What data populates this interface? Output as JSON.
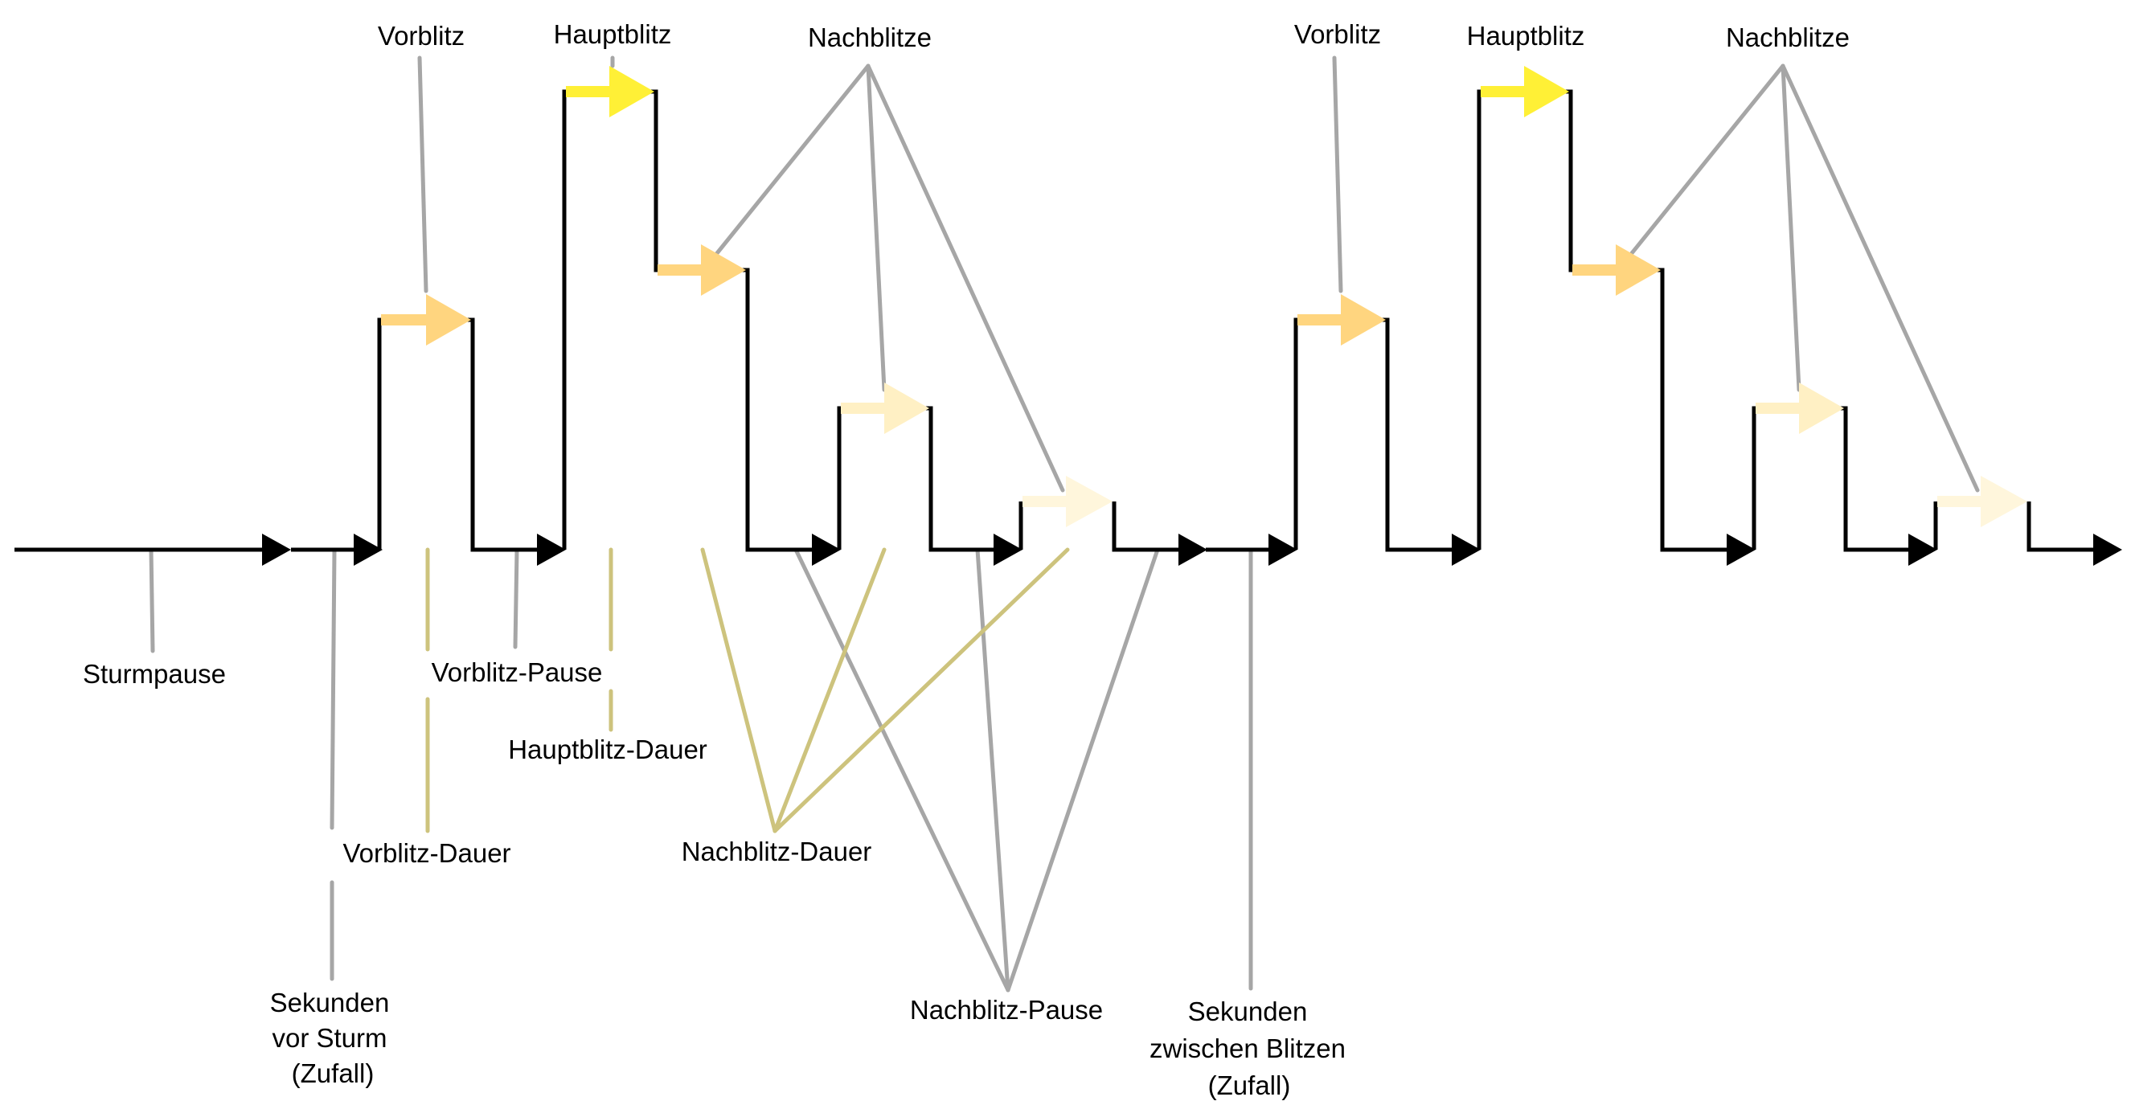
{
  "colors": {
    "signal": "#000000",
    "leader_gray": "#a6a6a6",
    "leader_olive": "#cdc37d",
    "main_flash": "#fff036",
    "pre_flash": "#ffd57f",
    "after_flash_1": "#ffd57f",
    "after_flash_2": "#fff0c4",
    "after_flash_3": "#fff6dc"
  },
  "labels": {
    "pre_flash_1": "Vorblitz",
    "main_flash_1": "Hauptblitz",
    "after_flashes_1": "Nachblitze",
    "pre_flash_2": "Vorblitz",
    "main_flash_2": "Hauptblitz",
    "after_flashes_2": "Nachblitze",
    "storm_pause": "Sturmpause",
    "pre_flash_pause": "Vorblitz-Pause",
    "main_flash_duration": "Hauptblitz-Dauer",
    "pre_flash_duration": "Vorblitz-Dauer",
    "after_flash_duration": "Nachblitz-Dauer",
    "seconds_before_storm": [
      "Sekunden",
      "vor Sturm",
      "(Zufall)"
    ],
    "after_flash_pause": "Nachblitz-Pause",
    "seconds_between_flashes": [
      "Sekunden",
      "zwischen Blitzen",
      "(Zufall)"
    ]
  }
}
